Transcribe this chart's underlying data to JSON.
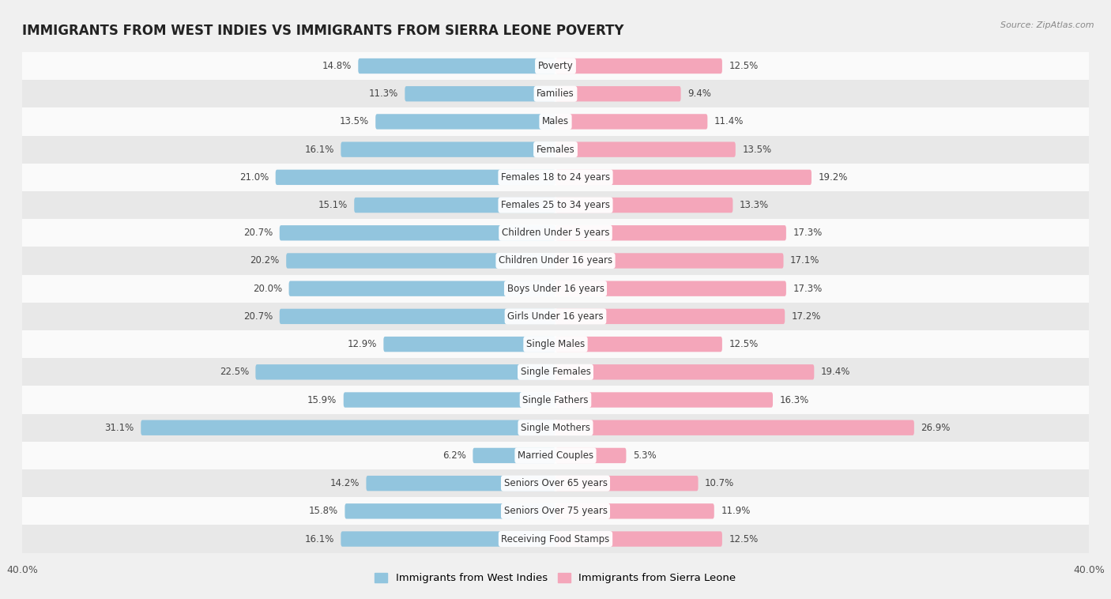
{
  "title": "IMMIGRANTS FROM WEST INDIES VS IMMIGRANTS FROM SIERRA LEONE POVERTY",
  "source": "Source: ZipAtlas.com",
  "categories": [
    "Poverty",
    "Families",
    "Males",
    "Females",
    "Females 18 to 24 years",
    "Females 25 to 34 years",
    "Children Under 5 years",
    "Children Under 16 years",
    "Boys Under 16 years",
    "Girls Under 16 years",
    "Single Males",
    "Single Females",
    "Single Fathers",
    "Single Mothers",
    "Married Couples",
    "Seniors Over 65 years",
    "Seniors Over 75 years",
    "Receiving Food Stamps"
  ],
  "west_indies": [
    14.8,
    11.3,
    13.5,
    16.1,
    21.0,
    15.1,
    20.7,
    20.2,
    20.0,
    20.7,
    12.9,
    22.5,
    15.9,
    31.1,
    6.2,
    14.2,
    15.8,
    16.1
  ],
  "sierra_leone": [
    12.5,
    9.4,
    11.4,
    13.5,
    19.2,
    13.3,
    17.3,
    17.1,
    17.3,
    17.2,
    12.5,
    19.4,
    16.3,
    26.9,
    5.3,
    10.7,
    11.9,
    12.5
  ],
  "west_indies_color": "#92c5de",
  "sierra_leone_color": "#f4a6ba",
  "west_indies_label": "Immigrants from West Indies",
  "sierra_leone_label": "Immigrants from Sierra Leone",
  "xlim": 40.0,
  "bar_height": 0.55,
  "bg_color": "#f0f0f0",
  "row_color_light": "#fafafa",
  "row_color_dark": "#e8e8e8",
  "title_fontsize": 12,
  "label_fontsize": 8.5,
  "value_fontsize": 8.5,
  "source_fontsize": 8
}
